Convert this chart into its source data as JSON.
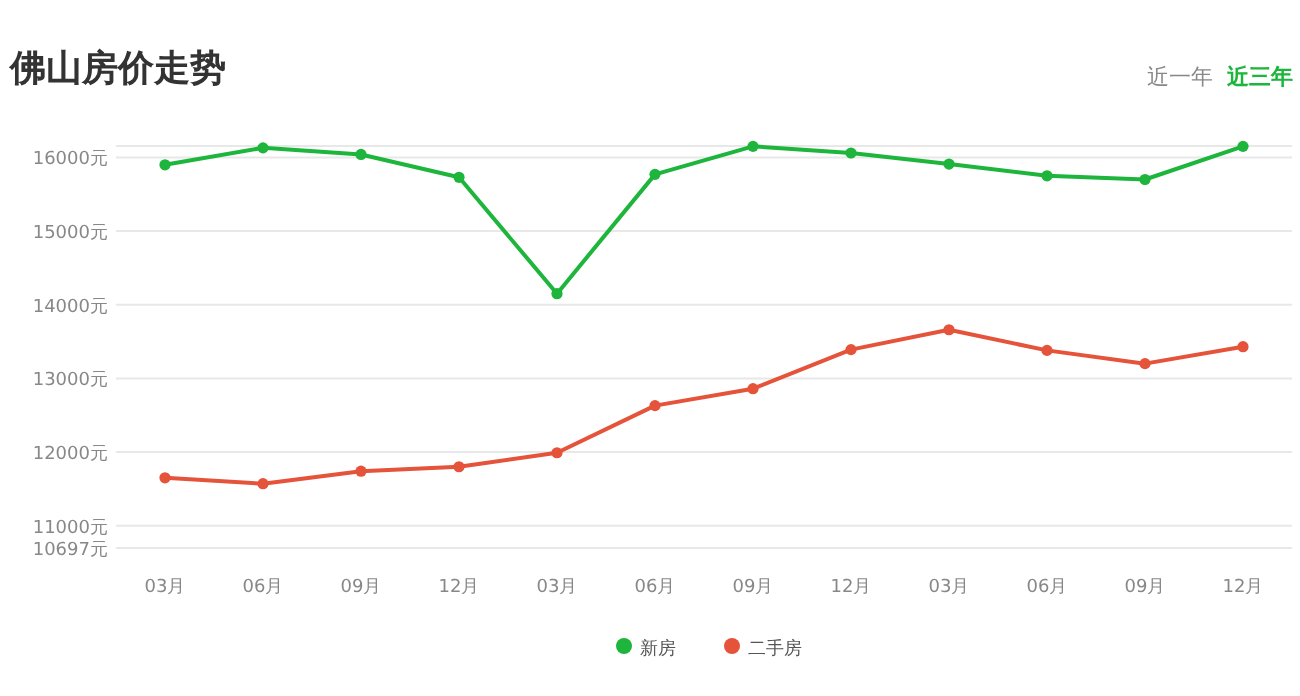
{
  "chart_data": {
    "type": "line",
    "title": "佛山房价走势",
    "annotations": [
      "近一年",
      "近三年"
    ],
    "categories": [
      "03月",
      "06月",
      "09月",
      "12月",
      "03月",
      "06月",
      "09月",
      "12月",
      "03月",
      "06月",
      "09月",
      "12月"
    ],
    "series": [
      {
        "name": "新房",
        "color": "#1db53b",
        "values": [
          15900,
          16130,
          16040,
          15730,
          14150,
          15770,
          16150,
          16060,
          15910,
          15750,
          15700,
          16150
        ]
      },
      {
        "name": "二手房",
        "color": "#e5533a",
        "values": [
          11650,
          11570,
          11740,
          11800,
          11990,
          12630,
          12860,
          13390,
          13660,
          13380,
          13200,
          13430
        ]
      }
    ],
    "ylim": [
      10697,
      16155
    ],
    "yticks": [
      {
        "value": 10697,
        "label": "10697元"
      },
      {
        "value": 11000,
        "label": "11000元"
      },
      {
        "value": 12000,
        "label": "12000元"
      },
      {
        "value": 13000,
        "label": "13000元"
      },
      {
        "value": 14000,
        "label": "14000元"
      },
      {
        "value": 15000,
        "label": "15000元"
      },
      {
        "value": 16000,
        "label": "16000元"
      },
      {
        "value": 16155,
        "label": null
      }
    ],
    "grid": "y",
    "legend": "bottom",
    "marker": "circle",
    "line_style": "solid"
  }
}
